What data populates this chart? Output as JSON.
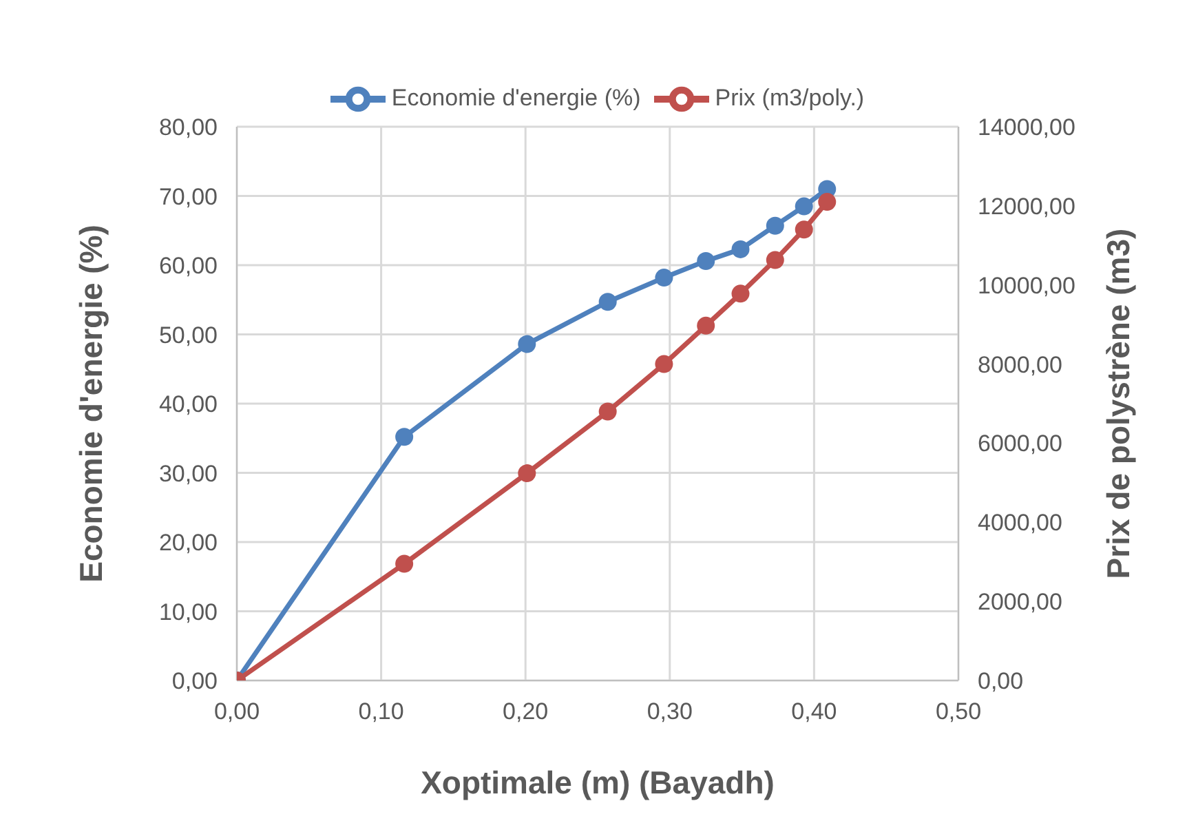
{
  "chart_data": {
    "type": "line",
    "xlabel": "Xoptimale (m) (Bayadh)",
    "ylabel": "Economie d'energie (%)",
    "y2label": "Prix  de polystrène (m3)",
    "series": [
      {
        "name": "Economie d'energie (%)",
        "color": "#4f81bd",
        "x": [
          0,
          0.116,
          0.201,
          0.257,
          0.296,
          0.325,
          0.349,
          0.373,
          0.393,
          0.409
        ],
        "values": [
          0,
          35.2,
          48.6,
          54.7,
          58.2,
          60.6,
          62.3,
          65.7,
          68.5,
          71.0
        ]
      },
      {
        "name": "Prix (m3/poly.)",
        "color": "#c0504d",
        "axis": "y2",
        "x": [
          0,
          0.116,
          0.201,
          0.257,
          0.296,
          0.325,
          0.349,
          0.373,
          0.393,
          0.409
        ],
        "values": [
          0,
          2950,
          5240,
          6800,
          8000,
          8970,
          9780,
          10630,
          11400,
          12100
        ]
      }
    ],
    "xlim": [
      0,
      0.5
    ],
    "xticks": [
      {
        "value": 0,
        "label": "0,00"
      },
      {
        "value": 0.1,
        "label": "0,10"
      },
      {
        "value": 0.2,
        "label": "0,20"
      },
      {
        "value": 0.3,
        "label": "0,30"
      },
      {
        "value": 0.4,
        "label": "0,40"
      },
      {
        "value": 0.5,
        "label": "0,50"
      }
    ],
    "ylim": [
      0,
      80
    ],
    "yticks": [
      {
        "value": 0,
        "label": "0,00"
      },
      {
        "value": 10,
        "label": "10,00"
      },
      {
        "value": 20,
        "label": "20,00"
      },
      {
        "value": 30,
        "label": "30,00"
      },
      {
        "value": 40,
        "label": "40,00"
      },
      {
        "value": 50,
        "label": "50,00"
      },
      {
        "value": 60,
        "label": "60,00"
      },
      {
        "value": 70,
        "label": "70,00"
      },
      {
        "value": 80,
        "label": "80,00"
      }
    ],
    "y2lim": [
      0,
      14000
    ],
    "y2ticks": [
      {
        "value": 0,
        "label": "0,00"
      },
      {
        "value": 2000,
        "label": "2000,00"
      },
      {
        "value": 4000,
        "label": "4000,00"
      },
      {
        "value": 6000,
        "label": "6000,00"
      },
      {
        "value": 8000,
        "label": "8000,00"
      },
      {
        "value": 10000,
        "label": "10000,00"
      },
      {
        "value": 12000,
        "label": "12000,00"
      },
      {
        "value": 14000,
        "label": "14000,00"
      }
    ],
    "grid": true,
    "legend": "top",
    "marker": "circle",
    "line_style": "solid"
  }
}
